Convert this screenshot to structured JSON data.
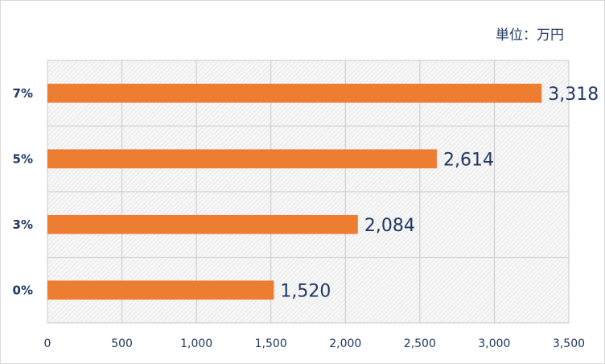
{
  "chart_data": {
    "type": "bar",
    "orientation": "horizontal",
    "unit_label": "単位：万円",
    "categories": [
      "7%",
      "5%",
      "3%",
      "0%"
    ],
    "values": [
      3318,
      2614,
      2084,
      1520
    ],
    "value_labels": [
      "3,318",
      "2,614",
      "2,084",
      "1,520"
    ],
    "xlim": [
      0,
      3500
    ],
    "x_ticks": [
      "0",
      "500",
      "1,000",
      "1,500",
      "2,000",
      "2,500",
      "3,000",
      "3,500"
    ],
    "x_tick_values": [
      0,
      500,
      1000,
      1500,
      2000,
      2500,
      3000,
      3500
    ],
    "grid": true,
    "bar_color": "#ed7d31",
    "label_color": "#1f3864"
  }
}
